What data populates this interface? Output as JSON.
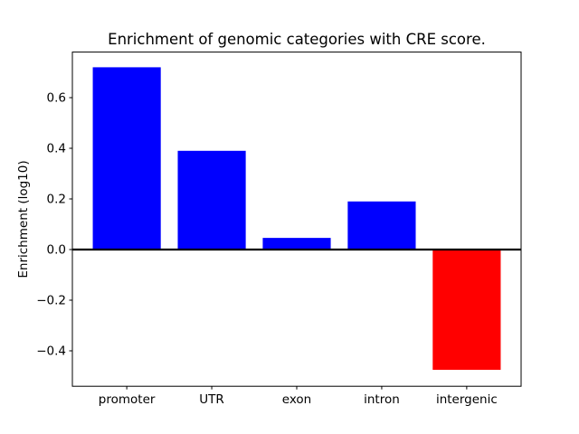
{
  "chart_data": {
    "type": "bar",
    "title": "Enrichment of genomic categories with CRE score.",
    "ylabel": "Enrichment (log10)",
    "xlabel": "",
    "categories": [
      "promoter",
      "UTR",
      "exon",
      "intron",
      "intergenic"
    ],
    "values": [
      0.72,
      0.39,
      0.046,
      0.19,
      -0.475
    ],
    "bar_colors": [
      "#0000ff",
      "#0000ff",
      "#0000ff",
      "#0000ff",
      "#ff0000"
    ],
    "positive_color": "#0000ff",
    "negative_color": "#ff0000",
    "ylim": [
      -0.54,
      0.78
    ],
    "yticks": [
      0.6,
      0.4,
      0.2,
      0.0,
      -0.2,
      -0.4
    ],
    "ytick_labels": [
      "0.6",
      "0.4",
      "0.2",
      "0.0",
      "−0.2",
      "−0.4"
    ],
    "zero_line": true,
    "grid": false,
    "legend_position": "none",
    "background_color": "#ffffff",
    "axis_color": "#000000"
  }
}
